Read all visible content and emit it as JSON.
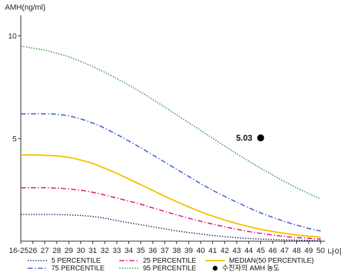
{
  "chart_data": {
    "type": "line",
    "ylabel": "AMH(ng/ml)",
    "xlabel": "나이",
    "x_categories": [
      "16-25",
      "26",
      "27",
      "28",
      "29",
      "30",
      "31",
      "32",
      "33",
      "34",
      "35",
      "36",
      "37",
      "38",
      "39",
      "40",
      "41",
      "42",
      "43",
      "44",
      "45",
      "46",
      "47",
      "48",
      "49",
      "50"
    ],
    "y_ticks": [
      5,
      10
    ],
    "ylim": [
      0,
      11
    ],
    "grid": false,
    "legend_position": "bottom",
    "series": [
      {
        "name": "5 PERCENTILE",
        "color": "#1a1a66",
        "dash": "dotted",
        "values": [
          1.3,
          1.3,
          1.3,
          1.3,
          1.28,
          1.25,
          1.2,
          1.12,
          1.0,
          0.9,
          0.8,
          0.7,
          0.6,
          0.5,
          0.42,
          0.35,
          0.28,
          0.22,
          0.17,
          0.13,
          0.1,
          0.08,
          0.06,
          0.05,
          0.04,
          0.03
        ]
      },
      {
        "name": "25 PERCENTILE",
        "color": "#e0127e",
        "dash": "dashdot",
        "values": [
          2.6,
          2.6,
          2.6,
          2.58,
          2.54,
          2.48,
          2.38,
          2.25,
          2.1,
          1.95,
          1.8,
          1.62,
          1.45,
          1.28,
          1.12,
          0.97,
          0.83,
          0.7,
          0.58,
          0.47,
          0.38,
          0.3,
          0.23,
          0.18,
          0.14,
          0.1
        ]
      },
      {
        "name": "MEDIAN(50 PERCENTILE)",
        "color": "#f2c200",
        "dash": "solid",
        "values": [
          4.2,
          4.2,
          4.18,
          4.15,
          4.08,
          3.95,
          3.78,
          3.55,
          3.3,
          3.03,
          2.75,
          2.47,
          2.19,
          1.92,
          1.67,
          1.43,
          1.22,
          1.03,
          0.86,
          0.71,
          0.58,
          0.47,
          0.38,
          0.3,
          0.24,
          0.2
        ]
      },
      {
        "name": "75 PERCENTILE",
        "color": "#3b5fc9",
        "dash": "dashdot",
        "values": [
          6.2,
          6.2,
          6.2,
          6.18,
          6.1,
          5.95,
          5.75,
          5.5,
          5.2,
          4.88,
          4.55,
          4.2,
          3.85,
          3.5,
          3.15,
          2.8,
          2.48,
          2.18,
          1.9,
          1.63,
          1.38,
          1.16,
          0.96,
          0.78,
          0.62,
          0.5
        ]
      },
      {
        "name": "95 PERCENTILE",
        "color": "#2e8b3a",
        "dash": "dotted",
        "values": [
          9.5,
          9.4,
          9.3,
          9.15,
          8.98,
          8.75,
          8.5,
          8.22,
          7.92,
          7.6,
          7.26,
          6.9,
          6.53,
          6.15,
          5.77,
          5.39,
          5.01,
          4.63,
          4.26,
          3.9,
          3.55,
          3.22,
          2.9,
          2.6,
          2.32,
          2.05
        ]
      }
    ],
    "highlight_point": {
      "label": "수진자의 AMH 농도",
      "x": "45",
      "y": 5.03,
      "value_label": "5.03",
      "color": "#000000"
    }
  }
}
